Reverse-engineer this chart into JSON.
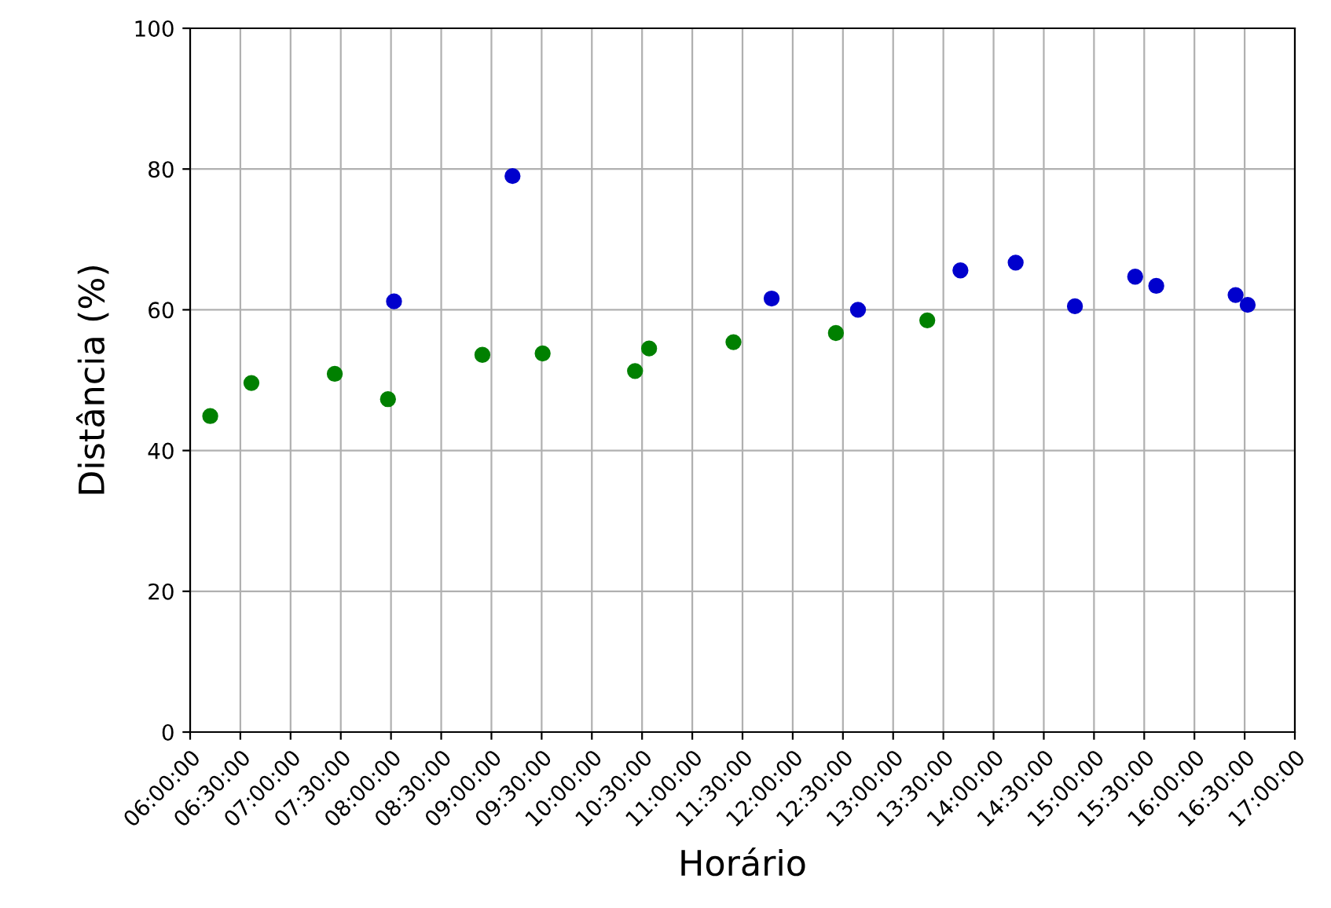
{
  "chart_data": {
    "type": "scatter",
    "xlabel": "Horário",
    "ylabel": "Distância (%)",
    "series": [
      {
        "color": "#008000",
        "x": [
          6.2,
          6.61,
          7.44,
          7.97,
          8.91,
          9.51,
          10.43,
          10.57,
          11.41,
          12.43,
          13.34
        ],
        "values": [
          44.9,
          49.6,
          50.9,
          47.3,
          53.6,
          53.8,
          51.3,
          54.5,
          55.4,
          56.7,
          58.5
        ]
      },
      {
        "color": "#0000cd",
        "x": [
          8.03,
          9.21,
          11.79,
          12.65,
          13.67,
          14.22,
          14.81,
          15.41,
          15.62,
          16.41,
          16.53
        ],
        "values": [
          61.2,
          79.0,
          61.6,
          60.0,
          65.6,
          66.7,
          60.5,
          64.7,
          63.4,
          62.1,
          60.7
        ]
      }
    ],
    "xlim": [
      6,
      17
    ],
    "xticks": [
      {
        "value": 6,
        "label": "06:00:00"
      },
      {
        "value": 6.5,
        "label": "06:30:00"
      },
      {
        "value": 7,
        "label": "07:00:00"
      },
      {
        "value": 7.5,
        "label": "07:30:00"
      },
      {
        "value": 8,
        "label": "08:00:00"
      },
      {
        "value": 8.5,
        "label": "08:30:00"
      },
      {
        "value": 9,
        "label": "09:00:00"
      },
      {
        "value": 9.5,
        "label": "09:30:00"
      },
      {
        "value": 10,
        "label": "10:00:00"
      },
      {
        "value": 10.5,
        "label": "10:30:00"
      },
      {
        "value": 11,
        "label": "11:00:00"
      },
      {
        "value": 11.5,
        "label": "11:30:00"
      },
      {
        "value": 12,
        "label": "12:00:00"
      },
      {
        "value": 12.5,
        "label": "12:30:00"
      },
      {
        "value": 13,
        "label": "13:00:00"
      },
      {
        "value": 13.5,
        "label": "13:30:00"
      },
      {
        "value": 14,
        "label": "14:00:00"
      },
      {
        "value": 14.5,
        "label": "14:30:00"
      },
      {
        "value": 15,
        "label": "15:00:00"
      },
      {
        "value": 15.5,
        "label": "15:30:00"
      },
      {
        "value": 16,
        "label": "16:00:00"
      },
      {
        "value": 16.5,
        "label": "16:30:00"
      },
      {
        "value": 17,
        "label": "17:00:00"
      }
    ],
    "ylim": [
      0,
      100
    ],
    "yticks": [
      0,
      20,
      40,
      60,
      80,
      100
    ],
    "grid": true,
    "marker": "circle"
  }
}
